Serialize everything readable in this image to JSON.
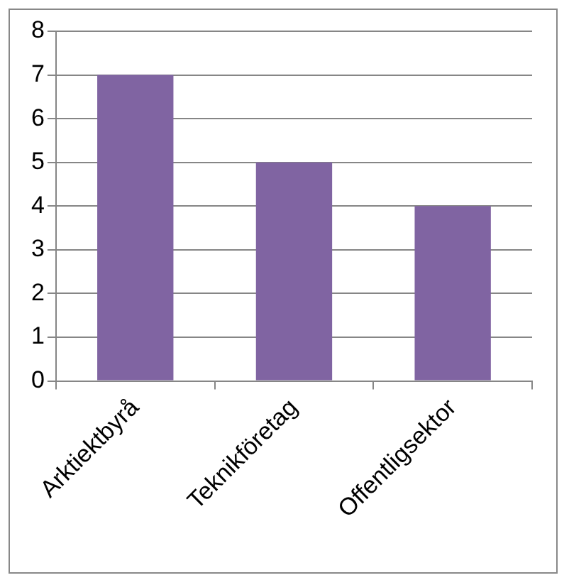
{
  "chart_data": {
    "type": "bar",
    "categories": [
      "Arktiektbyrå",
      "Teknikföretag",
      "Offentligsektor"
    ],
    "values": [
      7,
      5,
      4
    ],
    "color": "#8064a2",
    "ylim": [
      0,
      8
    ],
    "yticks": [
      0,
      1,
      2,
      3,
      4,
      5,
      6,
      7,
      8
    ],
    "grid": "y"
  }
}
